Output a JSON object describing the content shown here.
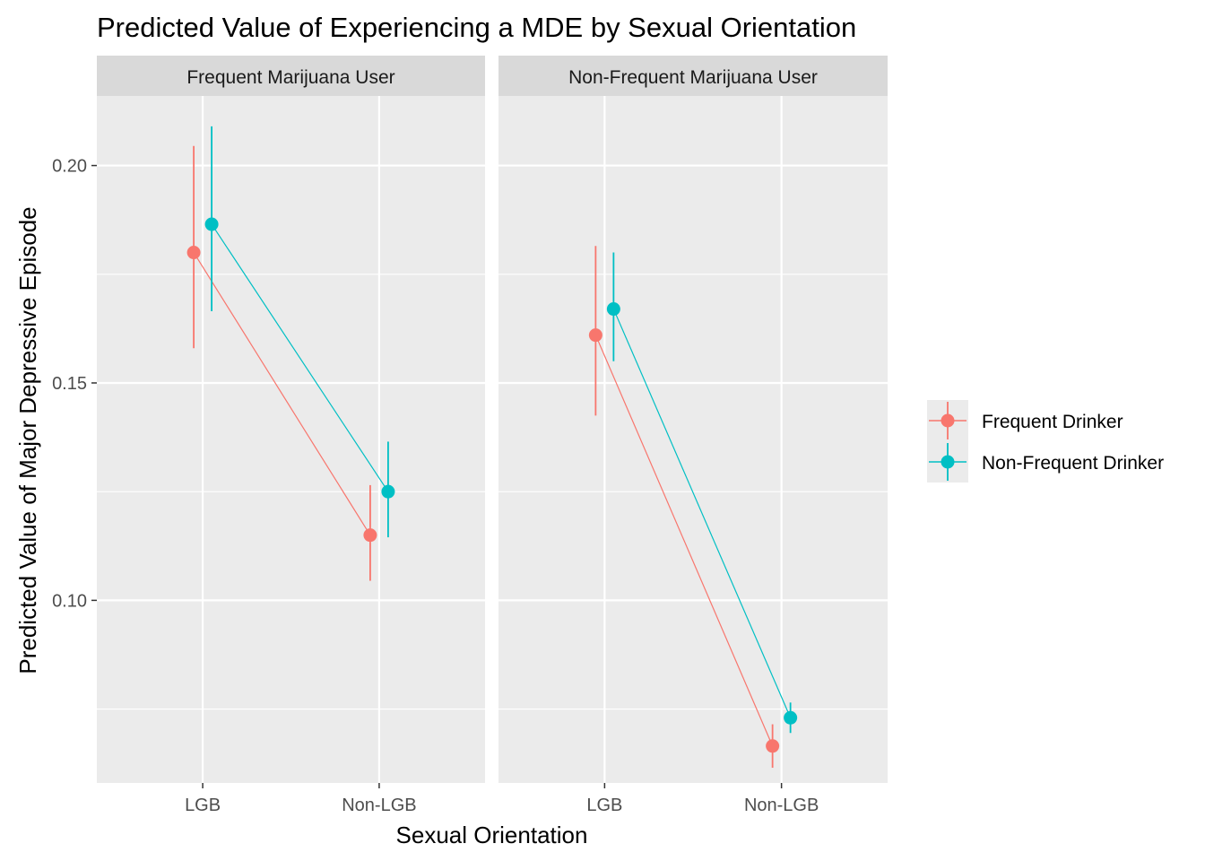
{
  "chart_data": {
    "type": "scatter",
    "title": "Predicted Value of Experiencing a MDE by Sexual Orientation",
    "xlabel": "Sexual Orientation",
    "ylabel": "Predicted Value of Major Depressive Episode",
    "categories": [
      "LGB",
      "Non-LGB"
    ],
    "ylim": [
      0.058,
      0.216
    ],
    "y_ticks": [
      0.1,
      0.15,
      0.2
    ],
    "y_tick_labels": [
      "0.10",
      "0.15",
      "0.20"
    ],
    "grid": true,
    "legend_position": "right",
    "panels": [
      {
        "name": "Frequent Marijuana User",
        "series": [
          {
            "name": "Frequent Drinker",
            "color": "#F8766D",
            "values": [
              0.18,
              0.115
            ],
            "lower": [
              0.158,
              0.1045
            ],
            "upper": [
              0.2045,
              0.1265
            ]
          },
          {
            "name": "Non-Frequent Drinker",
            "color": "#00BFC4",
            "values": [
              0.1865,
              0.125
            ],
            "lower": [
              0.1665,
              0.1145
            ],
            "upper": [
              0.209,
              0.1365
            ]
          }
        ]
      },
      {
        "name": "Non-Frequent Marijuana User",
        "series": [
          {
            "name": "Frequent Drinker",
            "color": "#F8766D",
            "values": [
              0.161,
              0.0665
            ],
            "lower": [
              0.1425,
              0.0615
            ],
            "upper": [
              0.1815,
              0.0715
            ]
          },
          {
            "name": "Non-Frequent Drinker",
            "color": "#00BFC4",
            "values": [
              0.167,
              0.073
            ],
            "lower": [
              0.155,
              0.0695
            ],
            "upper": [
              0.18,
              0.0765
            ]
          }
        ]
      }
    ],
    "colors": {
      "panel_background": "#EBEBEB",
      "strip_background": "#D9D9D9",
      "grid": "#FFFFFF"
    }
  }
}
